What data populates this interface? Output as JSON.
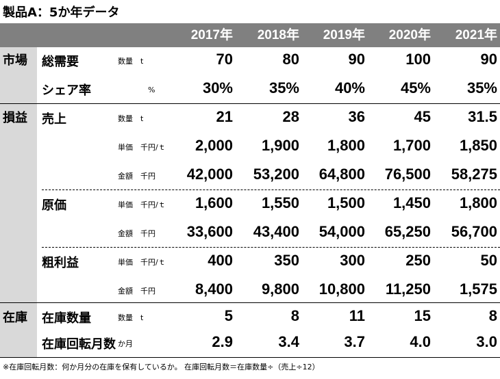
{
  "title": "製品A：5か年データ",
  "years": [
    "2017年",
    "2018年",
    "2019年",
    "2020年",
    "2021年"
  ],
  "sections": [
    {
      "label": "市場",
      "rows": [
        {
          "item": "総需要",
          "unit": "数量　t",
          "values": [
            "70",
            "80",
            "90",
            "100",
            "90"
          ]
        },
        {
          "item": "シェア率",
          "unit": "　　　　%",
          "values": [
            "30%",
            "35%",
            "40%",
            "45%",
            "35%"
          ]
        }
      ]
    },
    {
      "label": "損益",
      "rows": [
        {
          "item": "売上",
          "unit": "数量　t",
          "values": [
            "21",
            "28",
            "36",
            "45",
            "31.5"
          ]
        },
        {
          "item": "",
          "unit": "単価　千円/ｔ",
          "values": [
            "2,000",
            "1,900",
            "1,800",
            "1,700",
            "1,850"
          ]
        },
        {
          "item": "",
          "unit": "金額　千円",
          "values": [
            "42,000",
            "53,200",
            "64,800",
            "76,500",
            "58,275"
          ]
        },
        {
          "item": "原価",
          "unit": "単価　千円/ｔ",
          "values": [
            "1,600",
            "1,550",
            "1,500",
            "1,450",
            "1,800"
          ]
        },
        {
          "item": "",
          "unit": "金額　千円",
          "values": [
            "33,600",
            "43,400",
            "54,000",
            "65,250",
            "56,700"
          ]
        },
        {
          "item": "粗利益",
          "unit": "単価　千円/ｔ",
          "values": [
            "400",
            "350",
            "300",
            "250",
            "50"
          ]
        },
        {
          "item": "",
          "unit": "金額　千円",
          "values": [
            "8,400",
            "9,800",
            "10,800",
            "11,250",
            "1,575"
          ]
        }
      ]
    },
    {
      "label": "在庫",
      "rows": [
        {
          "item": "在庫数量",
          "unit": "数量　t",
          "values": [
            "5",
            "8",
            "11",
            "15",
            "8"
          ]
        },
        {
          "item": "在庫回転月数",
          "unit": "か月",
          "values": [
            "2.9",
            "3.4",
            "3.7",
            "4.0",
            "3.0"
          ]
        }
      ]
    }
  ],
  "note": "※在庫回転月数：何か月分の在庫を保有しているか。 在庫回転月数＝在庫数量÷（売上÷12）"
}
